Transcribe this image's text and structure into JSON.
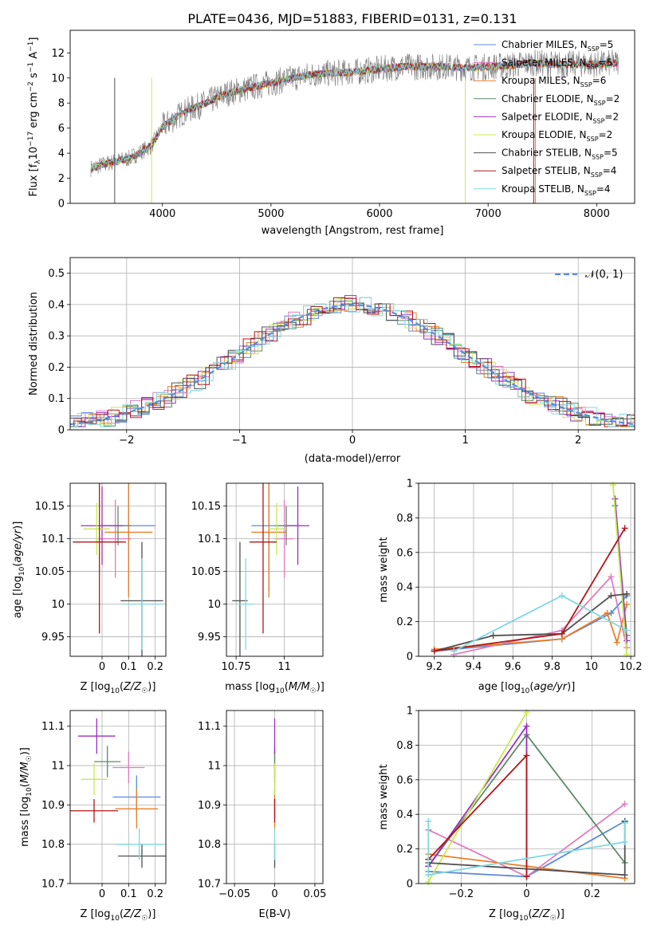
{
  "figure_title": "PLATE=0436, MJD=51883, FIBERID=0131, z=0.131",
  "colors": {
    "Chabrier MILES": "#5b8bd8",
    "Salpeter MILES": "#e07bbf",
    "Kroupa MILES": "#e87f2a",
    "Chabrier ELODIE": "#5f8a6a",
    "Salpeter ELODIE": "#9a2fbf",
    "Kroupa ELODIE": "#c8e850",
    "Chabrier STELIB": "#505050",
    "Salpeter STELIB": "#b11616",
    "Kroupa STELIB": "#7fd8de"
  },
  "chart_data": [
    {
      "type": "line",
      "xlabel": "wavelength [Angstrom, rest frame]",
      "ylabel": "Flux [f_λ 10^-17 erg cm^-2 s^-1 A^-1]",
      "xlim": [
        3150,
        8350
      ],
      "ylim": [
        0,
        13.8
      ],
      "xticks": [
        4000,
        5000,
        6000,
        7000,
        8000
      ],
      "yticks": [
        0,
        2,
        4,
        6,
        8,
        10,
        12
      ],
      "grid": false,
      "legend_position": "right",
      "legend": [
        {
          "name": "Chabrier MILES",
          "label": "Chabrier MILES, N",
          "sub": "SSP",
          "suffix": "=5"
        },
        {
          "name": "Salpeter MILES",
          "label": "Salpeter MILES, N",
          "sub": "SSP",
          "suffix": "=5"
        },
        {
          "name": "Kroupa MILES",
          "label": "Kroupa MILES, N",
          "sub": "SSP",
          "suffix": "=6"
        },
        {
          "name": "Chabrier ELODIE",
          "label": "Chabrier ELODIE, N",
          "sub": "SSP",
          "suffix": "=2"
        },
        {
          "name": "Salpeter ELODIE",
          "label": "Salpeter ELODIE, N",
          "sub": "SSP",
          "suffix": "=2"
        },
        {
          "name": "Kroupa ELODIE",
          "label": "Kroupa ELODIE, N",
          "sub": "SSP",
          "suffix": "=2"
        },
        {
          "name": "Chabrier STELIB",
          "label": "Chabrier STELIB, N",
          "sub": "SSP",
          "suffix": "=5"
        },
        {
          "name": "Salpeter STELIB",
          "label": "Salpeter STELIB, N",
          "sub": "SSP",
          "suffix": "=4"
        },
        {
          "name": "Kroupa STELIB",
          "label": "Kroupa STELIB, N",
          "sub": "SSP",
          "suffix": "=4"
        }
      ],
      "spectrum": {
        "x": [
          3340,
          3500,
          3700,
          3900,
          4000,
          4200,
          4400,
          4600,
          4800,
          5000,
          5200,
          5400,
          5600,
          5800,
          6000,
          6200,
          6400,
          6600,
          6800,
          7000,
          7200,
          7400,
          7600,
          7800,
          8000,
          8200
        ],
        "y": [
          2.8,
          3.2,
          3.6,
          4.6,
          6.1,
          7.3,
          8.0,
          8.8,
          9.2,
          9.6,
          10.0,
          10.3,
          10.4,
          10.5,
          10.7,
          10.9,
          10.9,
          10.9,
          10.8,
          10.9,
          11.0,
          11.2,
          11.1,
          11.1,
          11.1,
          11.2
        ]
      }
    },
    {
      "type": "histogram",
      "xlabel": "(data-model)/error",
      "ylabel": "Normed distribution",
      "xlim": [
        -2.5,
        2.5
      ],
      "ylim": [
        0,
        0.55
      ],
      "xticks": [
        -2,
        -1,
        0,
        1,
        2
      ],
      "yticks": [
        0.0,
        0.1,
        0.2,
        0.3,
        0.4,
        0.5
      ],
      "grid": true,
      "legend_position": "top-right",
      "reference_label": "𝒩(0, 1)",
      "reference_color": "#5b8bd8"
    },
    {
      "type": "errorbar",
      "xlabel": "Z [log10(Z/Z☉)]",
      "ylabel": "age  [log10(age/yr)]",
      "xlim": [
        -0.12,
        0.24
      ],
      "ylim": [
        9.92,
        10.185
      ],
      "xticks": [
        0.0,
        0.1,
        0.2
      ],
      "yticks": [
        9.95,
        10.0,
        10.05,
        10.1,
        10.15
      ],
      "grid": true,
      "points": [
        {
          "name": "Chabrier MILES",
          "x": 0.1,
          "xerr": 0.1,
          "y": 10.12,
          "yerr": 0.1
        },
        {
          "name": "Salpeter MILES",
          "x": 0.05,
          "xerr": 0.06,
          "y": 10.1,
          "yerr": 0.06
        },
        {
          "name": "Kroupa MILES",
          "x": 0.1,
          "xerr": 0.09,
          "y": 10.11,
          "yerr": 0.1
        },
        {
          "name": "Chabrier ELODIE",
          "x": 0.06,
          "xerr": 0.05,
          "y": 10.12,
          "yerr": 0.03
        },
        {
          "name": "Salpeter ELODIE",
          "x": 0.0,
          "xerr": 0.08,
          "y": 10.12,
          "yerr": 0.06
        },
        {
          "name": "Kroupa ELODIE",
          "x": -0.02,
          "xerr": 0.05,
          "y": 10.115,
          "yerr": 0.04
        },
        {
          "name": "Chabrier STELIB",
          "x": 0.15,
          "xerr": 0.08,
          "y": 10.005,
          "yerr": 0.09
        },
        {
          "name": "Salpeter STELIB",
          "x": -0.01,
          "xerr": 0.1,
          "y": 10.095,
          "yerr": 0.14
        },
        {
          "name": "Kroupa STELIB",
          "x": 0.15,
          "xerr": 0.08,
          "y": 10.0,
          "yerr": 0.07
        }
      ]
    },
    {
      "type": "errorbar",
      "xlabel": "mass [log10(M/M☉)]",
      "ylabel": "",
      "xlim": [
        10.7,
        11.2
      ],
      "ylim": [
        9.92,
        10.185
      ],
      "xticks": [
        10.75,
        11.0
      ],
      "yticks": [
        9.95,
        10.0,
        10.05,
        10.1,
        10.15
      ],
      "grid": true,
      "points": [
        {
          "name": "Chabrier MILES",
          "x": 10.92,
          "xerr": 0.09,
          "y": 10.12,
          "yerr": 0.1
        },
        {
          "name": "Salpeter MILES",
          "x": 11.0,
          "xerr": 0.05,
          "y": 10.1,
          "yerr": 0.06
        },
        {
          "name": "Kroupa MILES",
          "x": 10.92,
          "xerr": 0.09,
          "y": 10.11,
          "yerr": 0.1
        },
        {
          "name": "Chabrier ELODIE",
          "x": 11.01,
          "xerr": 0.06,
          "y": 10.12,
          "yerr": 0.03
        },
        {
          "name": "Salpeter ELODIE",
          "x": 11.07,
          "xerr": 0.06,
          "y": 10.12,
          "yerr": 0.06
        },
        {
          "name": "Kroupa ELODIE",
          "x": 10.96,
          "xerr": 0.04,
          "y": 10.115,
          "yerr": 0.04
        },
        {
          "name": "Chabrier STELIB",
          "x": 10.77,
          "xerr": 0.04,
          "y": 10.005,
          "yerr": 0.09
        },
        {
          "name": "Salpeter STELIB",
          "x": 10.89,
          "xerr": 0.07,
          "y": 10.095,
          "yerr": 0.14
        },
        {
          "name": "Kroupa STELIB",
          "x": 10.8,
          "xerr": 0.04,
          "y": 10.0,
          "yerr": 0.07
        }
      ]
    },
    {
      "type": "line",
      "xlabel": "age  [log10(age/yr)]",
      "ylabel": "mass weight",
      "xlim": [
        9.12,
        10.22
      ],
      "ylim": [
        0,
        1
      ],
      "xticks": [
        9.2,
        9.4,
        9.6,
        9.8,
        10.0,
        10.2
      ],
      "yticks": [
        0.0,
        0.2,
        0.4,
        0.6,
        0.8,
        1.0
      ],
      "grid": true,
      "series": [
        {
          "name": "Chabrier MILES",
          "x": [
            9.2,
            9.85,
            10.1,
            10.18
          ],
          "y": [
            0.03,
            0.1,
            0.25,
            0.35
          ]
        },
        {
          "name": "Salpeter MILES",
          "x": [
            9.3,
            9.85,
            10.1,
            10.18
          ],
          "y": [
            0.01,
            0.15,
            0.46,
            0.05
          ]
        },
        {
          "name": "Kroupa MILES",
          "x": [
            9.2,
            9.85,
            10.08,
            10.13,
            10.18
          ],
          "y": [
            0.04,
            0.1,
            0.25,
            0.08,
            0.3
          ]
        },
        {
          "name": "Chabrier ELODIE",
          "x": [
            10.12,
            10.18
          ],
          "y": [
            0.87,
            0.12
          ]
        },
        {
          "name": "Salpeter ELODIE",
          "x": [
            10.12,
            10.18
          ],
          "y": [
            0.91,
            0.09
          ]
        },
        {
          "name": "Kroupa ELODIE",
          "x": [
            10.11,
            10.18
          ],
          "y": [
            0.99,
            0.01
          ]
        },
        {
          "name": "Chabrier STELIB",
          "x": [
            9.2,
            9.5,
            9.85,
            10.1,
            10.18
          ],
          "y": [
            0.03,
            0.12,
            0.13,
            0.35,
            0.36
          ]
        },
        {
          "name": "Salpeter STELIB",
          "x": [
            9.2,
            9.85,
            10.17
          ],
          "y": [
            0.03,
            0.13,
            0.74
          ]
        },
        {
          "name": "Kroupa STELIB",
          "x": [
            9.3,
            9.85,
            10.18
          ],
          "y": [
            0.03,
            0.35,
            0.15
          ]
        }
      ]
    },
    {
      "type": "errorbar",
      "xlabel": "Z [log10(Z/Z☉)]",
      "ylabel": "mass [log10(M/M☉)]",
      "xlim": [
        -0.12,
        0.24
      ],
      "ylim": [
        10.7,
        11.14
      ],
      "xticks": [
        0.0,
        0.1,
        0.2
      ],
      "yticks": [
        10.7,
        10.8,
        10.9,
        11.0,
        11.1
      ],
      "grid": true,
      "points": [
        {
          "name": "Chabrier MILES",
          "x": 0.13,
          "xerr": 0.09,
          "y": 10.92,
          "yerr": 0.055
        },
        {
          "name": "Salpeter MILES",
          "x": 0.1,
          "xerr": 0.06,
          "y": 10.995,
          "yerr": 0.04
        },
        {
          "name": "Kroupa MILES",
          "x": 0.13,
          "xerr": 0.08,
          "y": 10.89,
          "yerr": 0.05
        },
        {
          "name": "Chabrier ELODIE",
          "x": 0.02,
          "xerr": 0.05,
          "y": 11.01,
          "yerr": 0.04
        },
        {
          "name": "Salpeter ELODIE",
          "x": -0.02,
          "xerr": 0.07,
          "y": 11.075,
          "yerr": 0.045
        },
        {
          "name": "Kroupa ELODIE",
          "x": -0.03,
          "xerr": 0.05,
          "y": 10.965,
          "yerr": 0.04
        },
        {
          "name": "Chabrier STELIB",
          "x": 0.15,
          "xerr": 0.09,
          "y": 10.77,
          "yerr": 0.03
        },
        {
          "name": "Salpeter STELIB",
          "x": -0.03,
          "xerr": 0.09,
          "y": 10.885,
          "yerr": 0.03
        },
        {
          "name": "Kroupa STELIB",
          "x": 0.14,
          "xerr": 0.09,
          "y": 10.8,
          "yerr": 0.04
        }
      ]
    },
    {
      "type": "errorbar",
      "xlabel": "E(B-V)",
      "ylabel": "",
      "xlim": [
        -0.06,
        0.06
      ],
      "ylim": [
        10.7,
        11.14
      ],
      "xticks": [
        -0.05,
        0.0,
        0.05
      ],
      "yticks": [
        10.7,
        10.8,
        10.9,
        11.0,
        11.1
      ],
      "grid": true,
      "points": [
        {
          "name": "Chabrier MILES",
          "x": 0.0,
          "xerr": 0.0,
          "y": 10.92,
          "yerr": 0.055
        },
        {
          "name": "Salpeter MILES",
          "x": 0.0,
          "xerr": 0.0,
          "y": 10.995,
          "yerr": 0.04
        },
        {
          "name": "Kroupa MILES",
          "x": 0.0,
          "xerr": 0.0,
          "y": 10.89,
          "yerr": 0.05
        },
        {
          "name": "Chabrier ELODIE",
          "x": 0.0,
          "xerr": 0.0,
          "y": 11.01,
          "yerr": 0.04
        },
        {
          "name": "Salpeter ELODIE",
          "x": 0.0,
          "xerr": 0.0,
          "y": 11.075,
          "yerr": 0.045
        },
        {
          "name": "Kroupa ELODIE",
          "x": 0.0,
          "xerr": 0.0,
          "y": 10.965,
          "yerr": 0.04
        },
        {
          "name": "Chabrier STELIB",
          "x": 0.0,
          "xerr": 0.0,
          "y": 10.77,
          "yerr": 0.03
        },
        {
          "name": "Salpeter STELIB",
          "x": 0.0,
          "xerr": 0.0,
          "y": 10.885,
          "yerr": 0.03
        },
        {
          "name": "Kroupa STELIB",
          "x": 0.0,
          "xerr": 0.0,
          "y": 10.8,
          "yerr": 0.04
        }
      ]
    },
    {
      "type": "line",
      "xlabel": "Z [log10(Z/Z☉)]",
      "ylabel": "mass weight",
      "xlim": [
        -0.33,
        0.33
      ],
      "ylim": [
        0,
        1
      ],
      "xticks": [
        -0.2,
        0.0,
        0.2
      ],
      "yticks": [
        0.0,
        0.2,
        0.4,
        0.6,
        0.8,
        1.0
      ],
      "grid": true,
      "series": [
        {
          "name": "Chabrier MILES",
          "x": [
            -0.3,
            0.0,
            0.3
          ],
          "y": [
            0.07,
            0.04,
            0.36
          ]
        },
        {
          "name": "Salpeter MILES",
          "x": [
            -0.3,
            0.0,
            0.3
          ],
          "y": [
            0.31,
            0.04,
            0.46
          ]
        },
        {
          "name": "Kroupa MILES",
          "x": [
            -0.3,
            0.0,
            0.3
          ],
          "y": [
            0.17,
            0.1,
            0.03
          ]
        },
        {
          "name": "Chabrier ELODIE",
          "x": [
            -0.3,
            0.0,
            0.3
          ],
          "y": [
            0.1,
            0.86,
            0.12
          ]
        },
        {
          "name": "Salpeter ELODIE",
          "x": [
            -0.3,
            0.0,
            0.0
          ],
          "y": [
            0.1,
            0.91,
            0.04
          ]
        },
        {
          "name": "Kroupa ELODIE",
          "x": [
            -0.3,
            0.0
          ],
          "y": [
            0.01,
            0.99
          ]
        },
        {
          "name": "Chabrier STELIB",
          "x": [
            -0.3,
            0.3,
            0.3
          ],
          "y": [
            0.12,
            0.05,
            0.36
          ]
        },
        {
          "name": "Salpeter STELIB",
          "x": [
            -0.3,
            0.0,
            0.0
          ],
          "y": [
            0.14,
            0.74,
            0.04
          ]
        },
        {
          "name": "Kroupa STELIB",
          "x": [
            -0.3,
            -0.3,
            0.3,
            0.3
          ],
          "y": [
            0.36,
            0.05,
            0.24,
            0.35
          ]
        }
      ]
    }
  ]
}
